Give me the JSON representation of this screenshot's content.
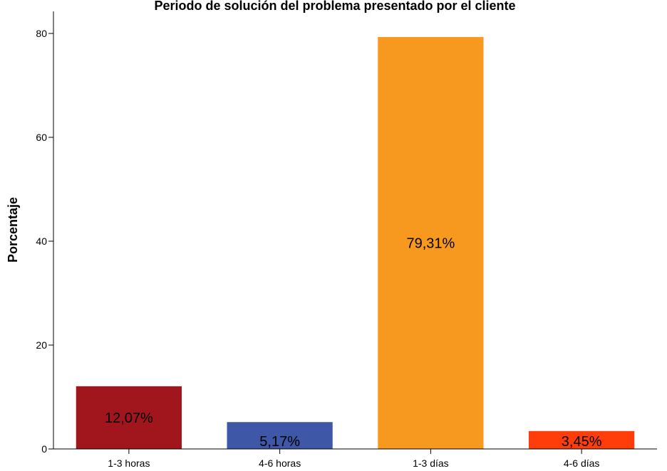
{
  "chart_data": {
    "type": "bar",
    "title": "Periodo de solución del problema presentado por el cliente",
    "xlabel": "",
    "ylabel": "Porcentaje",
    "categories": [
      "1-3 horas",
      "4-6 horas",
      "1-3 días",
      "4-6 días"
    ],
    "values": [
      12.07,
      5.17,
      79.31,
      3.45
    ],
    "data_labels": [
      "12,07%",
      "5,17%",
      "79,31%",
      "3,45%"
    ],
    "colors": [
      "#a0161c",
      "#3e57a7",
      "#f7991f",
      "#ff3d0a"
    ],
    "ylim": [
      0,
      80
    ],
    "yticks": [
      0,
      20,
      40,
      60,
      80
    ],
    "grid": false,
    "legend": "none"
  }
}
